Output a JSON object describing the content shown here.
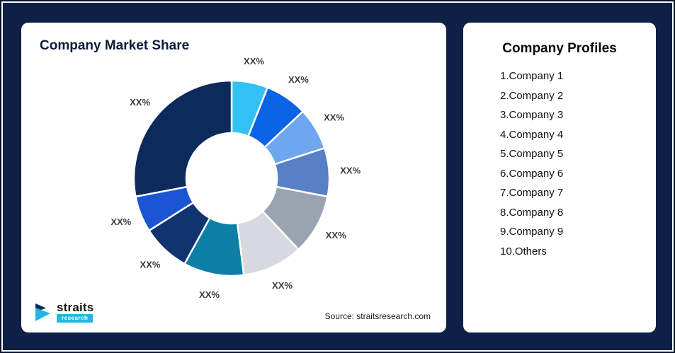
{
  "left_card": {
    "title": "Company Market Share",
    "source": "Source: straitsresearch.com",
    "logo": {
      "brand": "straits",
      "sub": "research"
    }
  },
  "right_card": {
    "title": "Company Profiles",
    "items": [
      "1.Company 1",
      "2.Company 2",
      "3.Company 3",
      "4.Company 4",
      "5.Company 5",
      "6.Company 6",
      "7.Company 7",
      "8.Company 8",
      "9.Company 9",
      "10.Others"
    ]
  },
  "chart_data": {
    "type": "pie",
    "donut": true,
    "title": "Company Market Share",
    "legend_position": "none",
    "source": "Source: straitsresearch.com",
    "segments": [
      {
        "label": "XX%",
        "value": 6,
        "color": "#33C1F5"
      },
      {
        "label": "XX%",
        "value": 7,
        "color": "#0B63E5"
      },
      {
        "label": "XX%",
        "value": 7,
        "color": "#6FA6F0"
      },
      {
        "label": "XX%",
        "value": 8,
        "color": "#5880C7"
      },
      {
        "label": "XX%",
        "value": 10,
        "color": "#9AA4B1"
      },
      {
        "label": "XX%",
        "value": 10,
        "color": "#D6DAE0"
      },
      {
        "label": "XX%",
        "value": 10,
        "color": "#0D7FA6"
      },
      {
        "label": "XX%",
        "value": 8,
        "color": "#11346F"
      },
      {
        "label": "XX%",
        "value": 6,
        "color": "#1C55D3"
      },
      {
        "label": "XX%",
        "value": 28,
        "color": "#0C2A5C"
      }
    ]
  }
}
